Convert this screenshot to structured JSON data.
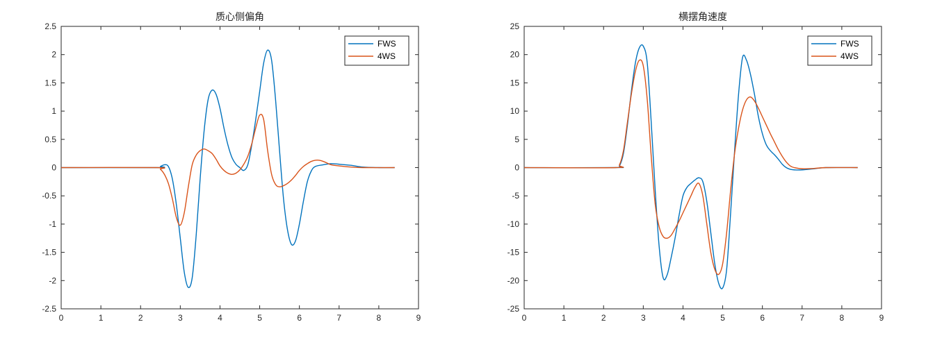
{
  "figure": {
    "background": "#ffffff"
  },
  "chart_data": [
    {
      "type": "line",
      "title": "质心侧偏角",
      "xlabel": "",
      "ylabel": "",
      "xlim": [
        0,
        9
      ],
      "ylim": [
        -2.5,
        2.5
      ],
      "xticks": [
        "0",
        "1",
        "2",
        "3",
        "4",
        "5",
        "6",
        "7",
        "8",
        "9"
      ],
      "yticks": [
        "2.5",
        "2",
        "1.5",
        "1",
        "0.5",
        "0",
        "-0.5",
        "-1",
        "-1.5",
        "-2",
        "-2.5"
      ],
      "grid": false,
      "legend_position": "top-right",
      "series": [
        {
          "name": "FWS",
          "color": "#0072BD",
          "points": [
            [
              0,
              0
            ],
            [
              2.4,
              0
            ],
            [
              2.5,
              0.02
            ],
            [
              2.6,
              0.05
            ],
            [
              2.7,
              0.02
            ],
            [
              2.8,
              -0.2
            ],
            [
              2.9,
              -0.65
            ],
            [
              3.0,
              -1.25
            ],
            [
              3.1,
              -1.85
            ],
            [
              3.2,
              -2.12
            ],
            [
              3.3,
              -1.95
            ],
            [
              3.4,
              -1.2
            ],
            [
              3.5,
              -0.2
            ],
            [
              3.6,
              0.65
            ],
            [
              3.7,
              1.2
            ],
            [
              3.8,
              1.37
            ],
            [
              3.9,
              1.3
            ],
            [
              4.0,
              1.05
            ],
            [
              4.1,
              0.7
            ],
            [
              4.2,
              0.4
            ],
            [
              4.3,
              0.18
            ],
            [
              4.4,
              0.06
            ],
            [
              4.5,
              0.0
            ],
            [
              4.6,
              -0.05
            ],
            [
              4.7,
              0.05
            ],
            [
              4.8,
              0.4
            ],
            [
              4.9,
              0.85
            ],
            [
              5.0,
              1.35
            ],
            [
              5.1,
              1.85
            ],
            [
              5.2,
              2.08
            ],
            [
              5.3,
              1.9
            ],
            [
              5.4,
              1.2
            ],
            [
              5.5,
              0.3
            ],
            [
              5.6,
              -0.55
            ],
            [
              5.7,
              -1.1
            ],
            [
              5.8,
              -1.36
            ],
            [
              5.9,
              -1.3
            ],
            [
              6.0,
              -1.0
            ],
            [
              6.1,
              -0.6
            ],
            [
              6.2,
              -0.25
            ],
            [
              6.3,
              -0.06
            ],
            [
              6.4,
              0.02
            ],
            [
              6.6,
              0.05
            ],
            [
              6.8,
              0.07
            ],
            [
              7.0,
              0.06
            ],
            [
              7.3,
              0.04
            ],
            [
              7.6,
              0.01
            ],
            [
              8.0,
              0
            ],
            [
              8.4,
              0
            ]
          ]
        },
        {
          "name": "4WS",
          "color": "#D95319",
          "points": [
            [
              0,
              0
            ],
            [
              2.4,
              0
            ],
            [
              2.5,
              -0.03
            ],
            [
              2.6,
              -0.12
            ],
            [
              2.7,
              -0.28
            ],
            [
              2.8,
              -0.55
            ],
            [
              2.9,
              -0.88
            ],
            [
              3.0,
              -1.02
            ],
            [
              3.1,
              -0.8
            ],
            [
              3.2,
              -0.35
            ],
            [
              3.3,
              0.05
            ],
            [
              3.4,
              0.22
            ],
            [
              3.5,
              0.3
            ],
            [
              3.6,
              0.33
            ],
            [
              3.7,
              0.3
            ],
            [
              3.8,
              0.25
            ],
            [
              3.9,
              0.15
            ],
            [
              4.0,
              0.03
            ],
            [
              4.1,
              -0.05
            ],
            [
              4.2,
              -0.1
            ],
            [
              4.3,
              -0.12
            ],
            [
              4.4,
              -0.1
            ],
            [
              4.5,
              -0.04
            ],
            [
              4.6,
              0.06
            ],
            [
              4.7,
              0.2
            ],
            [
              4.8,
              0.42
            ],
            [
              4.9,
              0.7
            ],
            [
              5.0,
              0.93
            ],
            [
              5.1,
              0.85
            ],
            [
              5.2,
              0.3
            ],
            [
              5.3,
              -0.12
            ],
            [
              5.4,
              -0.3
            ],
            [
              5.5,
              -0.34
            ],
            [
              5.6,
              -0.32
            ],
            [
              5.7,
              -0.28
            ],
            [
              5.8,
              -0.22
            ],
            [
              5.9,
              -0.14
            ],
            [
              6.0,
              -0.05
            ],
            [
              6.1,
              0.02
            ],
            [
              6.2,
              0.07
            ],
            [
              6.3,
              0.11
            ],
            [
              6.4,
              0.13
            ],
            [
              6.5,
              0.13
            ],
            [
              6.6,
              0.11
            ],
            [
              6.7,
              0.08
            ],
            [
              6.8,
              0.05
            ],
            [
              7.0,
              0.03
            ],
            [
              7.3,
              0.01
            ],
            [
              7.6,
              0
            ],
            [
              8.4,
              0
            ]
          ]
        }
      ]
    },
    {
      "type": "line",
      "title": "横摆角速度",
      "xlabel": "",
      "ylabel": "",
      "xlim": [
        0,
        9
      ],
      "ylim": [
        -25,
        25
      ],
      "xticks": [
        "0",
        "1",
        "2",
        "3",
        "4",
        "5",
        "6",
        "7",
        "8",
        "9"
      ],
      "yticks": [
        "25",
        "20",
        "15",
        "10",
        "5",
        "0",
        "-5",
        "-10",
        "-15",
        "-20",
        "-25"
      ],
      "grid": false,
      "legend_position": "top-right",
      "series": [
        {
          "name": "FWS",
          "color": "#0072BD",
          "points": [
            [
              0,
              0
            ],
            [
              2.3,
              0
            ],
            [
              2.4,
              0.3
            ],
            [
              2.5,
              2.5
            ],
            [
              2.6,
              7.5
            ],
            [
              2.7,
              13.5
            ],
            [
              2.8,
              18.5
            ],
            [
              2.9,
              21.2
            ],
            [
              3.0,
              21.5
            ],
            [
              3.1,
              18.5
            ],
            [
              3.2,
              8
            ],
            [
              3.3,
              -4
            ],
            [
              3.4,
              -14
            ],
            [
              3.5,
              -19.5
            ],
            [
              3.6,
              -19
            ],
            [
              3.7,
              -16
            ],
            [
              3.8,
              -12.5
            ],
            [
              3.9,
              -8.5
            ],
            [
              4.0,
              -5
            ],
            [
              4.1,
              -3.5
            ],
            [
              4.2,
              -2.8
            ],
            [
              4.3,
              -2.2
            ],
            [
              4.4,
              -1.8
            ],
            [
              4.5,
              -2.5
            ],
            [
              4.6,
              -6
            ],
            [
              4.7,
              -11.5
            ],
            [
              4.8,
              -17
            ],
            [
              4.9,
              -20.5
            ],
            [
              5.0,
              -21.3
            ],
            [
              5.1,
              -18
            ],
            [
              5.2,
              -8
            ],
            [
              5.3,
              3
            ],
            [
              5.4,
              13
            ],
            [
              5.5,
              19.5
            ],
            [
              5.6,
              19
            ],
            [
              5.7,
              16.5
            ],
            [
              5.8,
              13
            ],
            [
              5.9,
              9
            ],
            [
              6.0,
              6
            ],
            [
              6.1,
              4
            ],
            [
              6.2,
              3
            ],
            [
              6.3,
              2.3
            ],
            [
              6.4,
              1.5
            ],
            [
              6.5,
              0.6
            ],
            [
              6.6,
              0
            ],
            [
              6.7,
              -0.3
            ],
            [
              6.8,
              -0.4
            ],
            [
              7.0,
              -0.4
            ],
            [
              7.3,
              -0.2
            ],
            [
              7.6,
              0
            ],
            [
              8.4,
              0
            ]
          ]
        },
        {
          "name": "4WS",
          "color": "#D95319",
          "points": [
            [
              0,
              0
            ],
            [
              2.3,
              0
            ],
            [
              2.4,
              0.5
            ],
            [
              2.5,
              3
            ],
            [
              2.6,
              8
            ],
            [
              2.7,
              13
            ],
            [
              2.8,
              17
            ],
            [
              2.9,
              19
            ],
            [
              3.0,
              18
            ],
            [
              3.1,
              12
            ],
            [
              3.2,
              2
            ],
            [
              3.3,
              -6.5
            ],
            [
              3.4,
              -10.5
            ],
            [
              3.5,
              -12.2
            ],
            [
              3.6,
              -12.5
            ],
            [
              3.7,
              -12
            ],
            [
              3.8,
              -10.8
            ],
            [
              3.9,
              -9.5
            ],
            [
              4.0,
              -8
            ],
            [
              4.1,
              -6.5
            ],
            [
              4.2,
              -5
            ],
            [
              4.3,
              -3.5
            ],
            [
              4.4,
              -2.8
            ],
            [
              4.5,
              -5
            ],
            [
              4.6,
              -10
            ],
            [
              4.7,
              -15
            ],
            [
              4.8,
              -18
            ],
            [
              4.9,
              -18.9
            ],
            [
              5.0,
              -17
            ],
            [
              5.1,
              -11.5
            ],
            [
              5.2,
              -4
            ],
            [
              5.3,
              2.5
            ],
            [
              5.4,
              7
            ],
            [
              5.5,
              10.2
            ],
            [
              5.6,
              12
            ],
            [
              5.7,
              12.5
            ],
            [
              5.8,
              11.8
            ],
            [
              5.9,
              10.5
            ],
            [
              6.0,
              9
            ],
            [
              6.1,
              7.5
            ],
            [
              6.2,
              6
            ],
            [
              6.3,
              4.6
            ],
            [
              6.4,
              3.2
            ],
            [
              6.5,
              2
            ],
            [
              6.6,
              1
            ],
            [
              6.7,
              0.3
            ],
            [
              6.8,
              0
            ],
            [
              7.0,
              -0.2
            ],
            [
              7.3,
              -0.15
            ],
            [
              7.6,
              0
            ],
            [
              8.4,
              0
            ]
          ]
        }
      ]
    }
  ]
}
